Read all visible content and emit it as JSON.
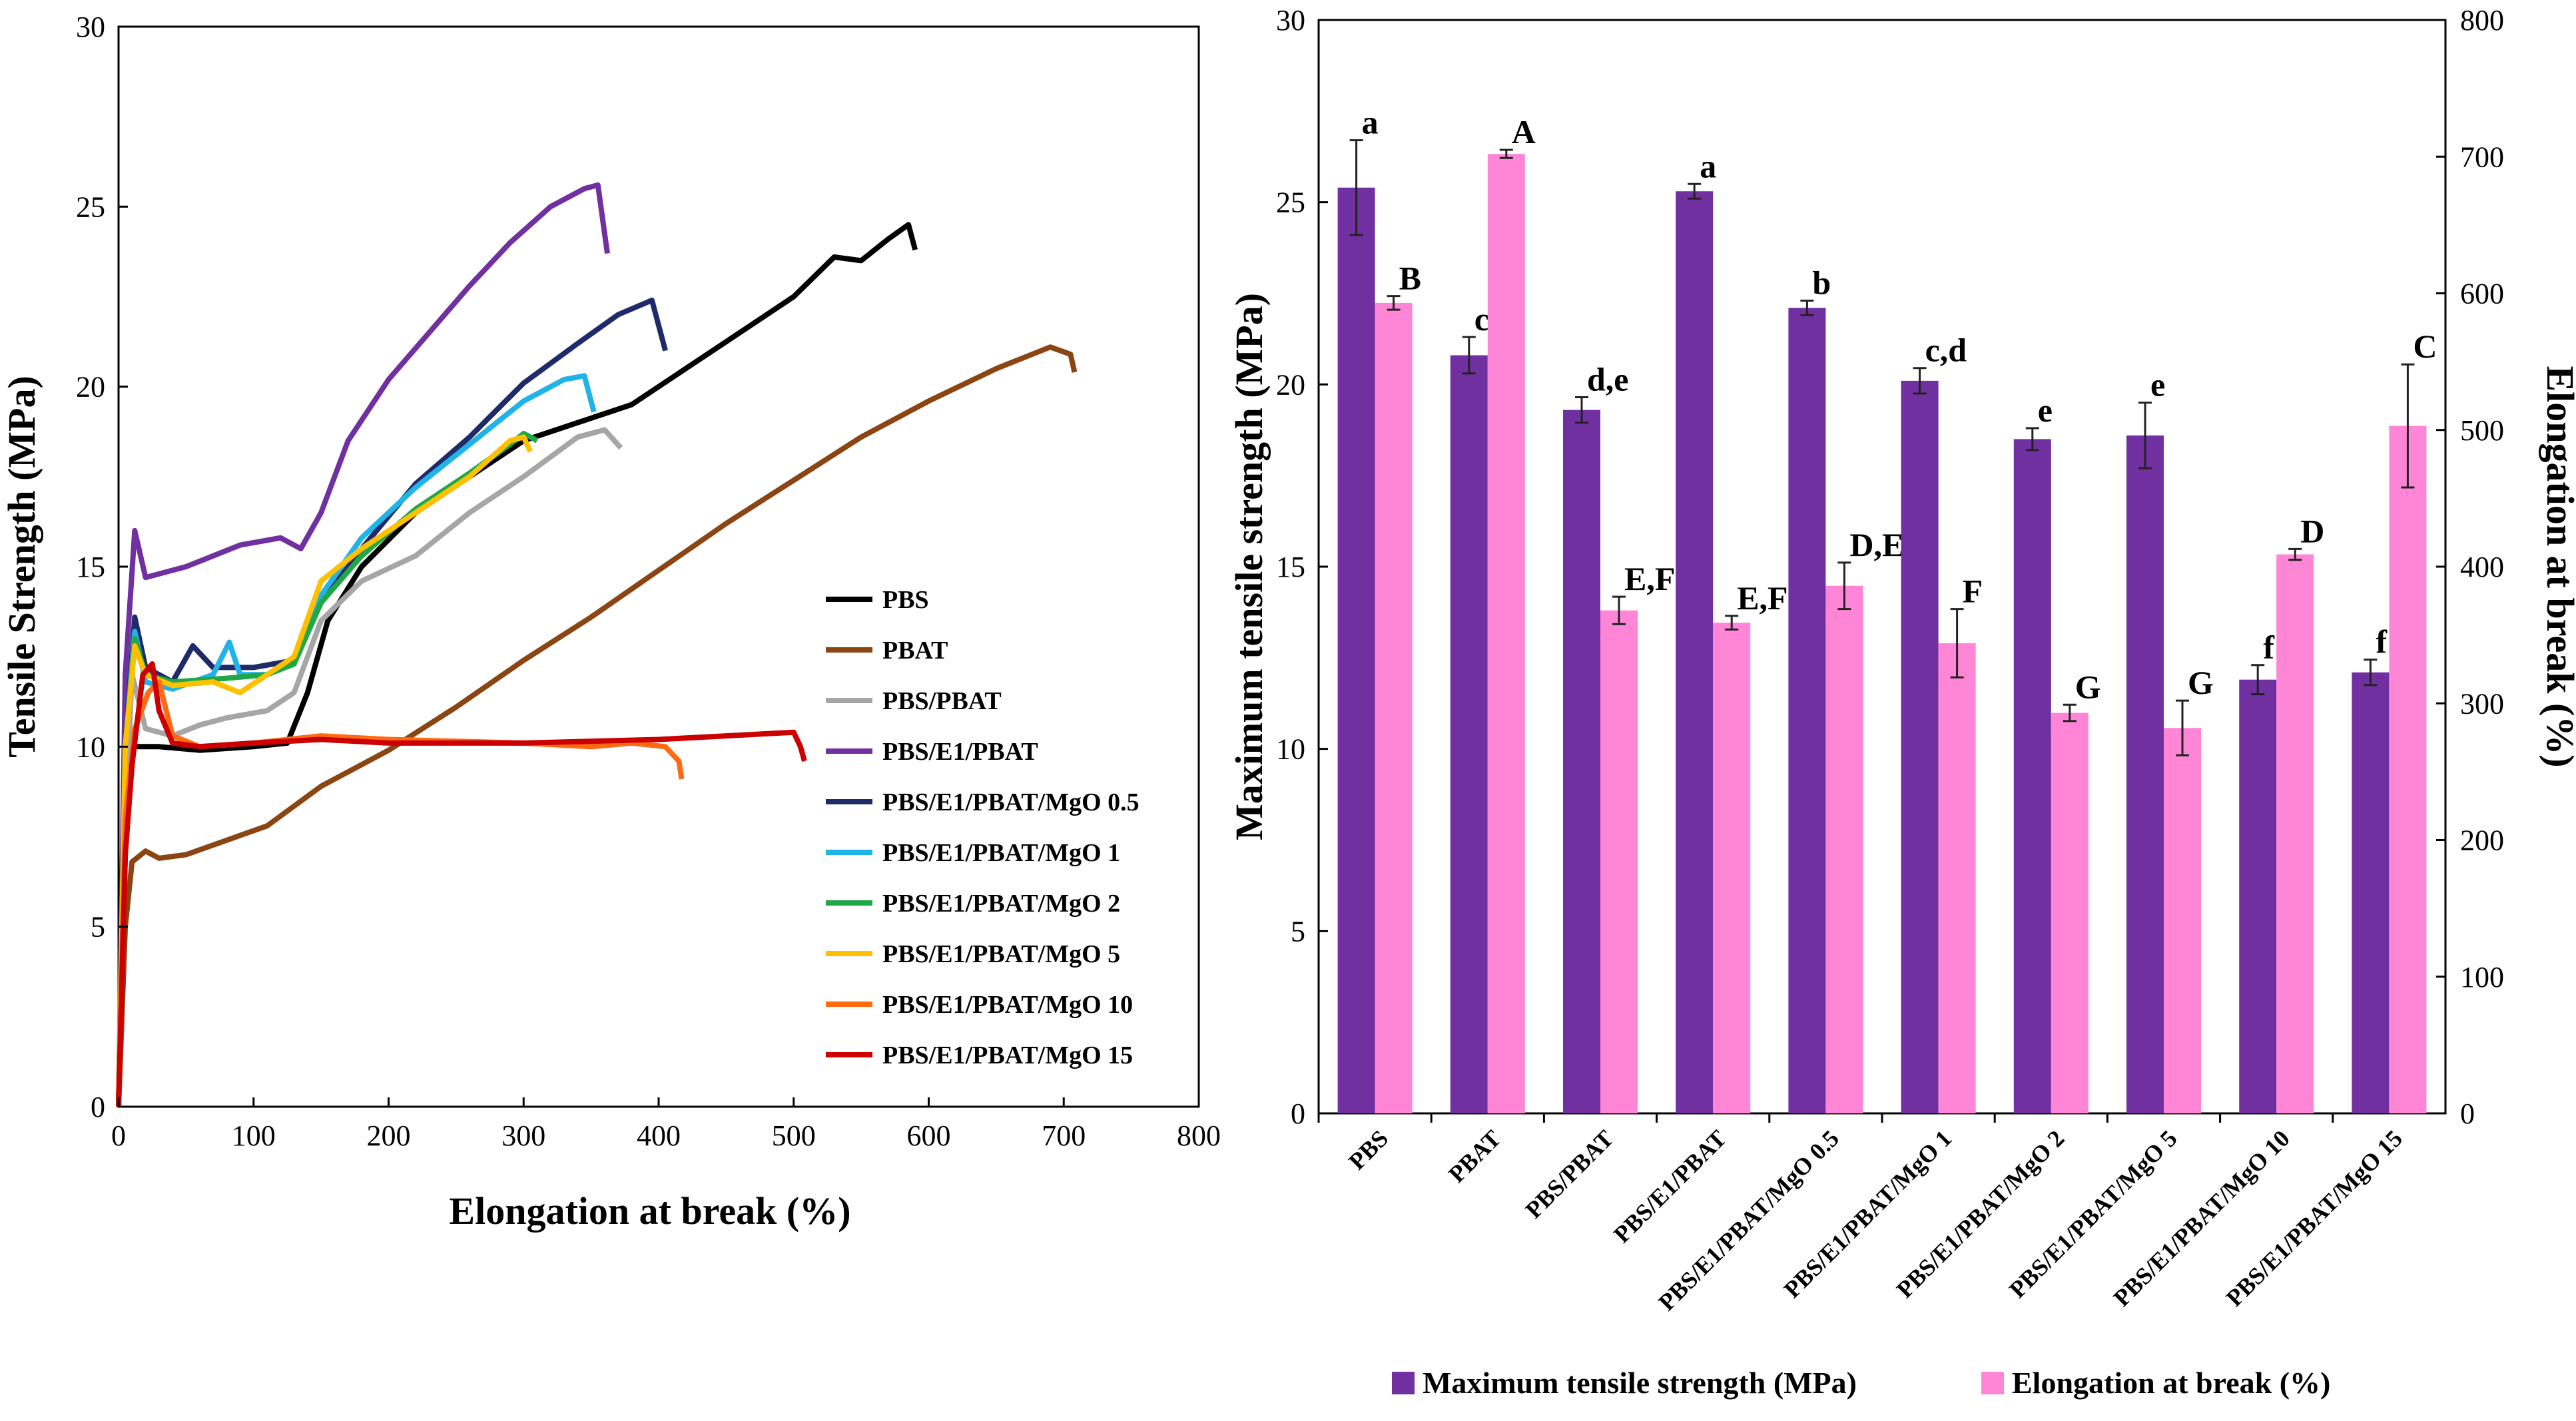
{
  "chart_data": [
    {
      "type": "line",
      "title": "",
      "xlabel": "Elongation at break (%)",
      "ylabel": "Tensile Strength (MPa)",
      "xlim": [
        0,
        800
      ],
      "ylim": [
        0,
        30
      ],
      "x_ticks": [
        "0",
        "100",
        "200",
        "300",
        "400",
        "500",
        "600",
        "700",
        "800"
      ],
      "y_ticks": [
        "0",
        "5",
        "10",
        "15",
        "20",
        "25",
        "30"
      ],
      "legend_position": "right",
      "series": [
        {
          "name": "PBS",
          "color": "#000000",
          "points": [
            [
              0,
              0
            ],
            [
              5,
              7
            ],
            [
              10,
              10
            ],
            [
              30,
              10
            ],
            [
              60,
              9.9
            ],
            [
              100,
              10
            ],
            [
              125,
              10.1
            ],
            [
              140,
              11.5
            ],
            [
              155,
              13.5
            ],
            [
              180,
              15
            ],
            [
              220,
              16.5
            ],
            [
              260,
              17.5
            ],
            [
              300,
              18.5
            ],
            [
              340,
              19
            ],
            [
              380,
              19.5
            ],
            [
              420,
              20.5
            ],
            [
              460,
              21.5
            ],
            [
              500,
              22.5
            ],
            [
              530,
              23.6
            ],
            [
              550,
              23.5
            ],
            [
              570,
              24.1
            ],
            [
              585,
              24.5
            ],
            [
              590,
              23.8
            ]
          ]
        },
        {
          "name": "PBAT",
          "color": "#8B4513",
          "points": [
            [
              0,
              0
            ],
            [
              5,
              5
            ],
            [
              10,
              6.8
            ],
            [
              20,
              7.1
            ],
            [
              30,
              6.9
            ],
            [
              50,
              7
            ],
            [
              80,
              7.4
            ],
            [
              110,
              7.8
            ],
            [
              150,
              8.9
            ],
            [
              200,
              9.9
            ],
            [
              250,
              11.1
            ],
            [
              300,
              12.4
            ],
            [
              350,
              13.6
            ],
            [
              400,
              14.9
            ],
            [
              450,
              16.2
            ],
            [
              500,
              17.4
            ],
            [
              550,
              18.6
            ],
            [
              600,
              19.6
            ],
            [
              650,
              20.5
            ],
            [
              690,
              21.1
            ],
            [
              705,
              20.9
            ],
            [
              708,
              20.4
            ]
          ]
        },
        {
          "name": "PBS/PBAT",
          "color": "#A6A6A6",
          "points": [
            [
              0,
              0
            ],
            [
              5,
              8
            ],
            [
              10,
              12
            ],
            [
              20,
              10.5
            ],
            [
              40,
              10.3
            ],
            [
              60,
              10.6
            ],
            [
              80,
              10.8
            ],
            [
              110,
              11
            ],
            [
              130,
              11.5
            ],
            [
              150,
              13.5
            ],
            [
              180,
              14.6
            ],
            [
              220,
              15.3
            ],
            [
              260,
              16.5
            ],
            [
              300,
              17.5
            ],
            [
              340,
              18.6
            ],
            [
              360,
              18.8
            ],
            [
              372,
              18.3
            ]
          ]
        },
        {
          "name": "PBS/E1/PBAT",
          "color": "#7030A0",
          "points": [
            [
              0,
              0
            ],
            [
              5,
              12
            ],
            [
              12,
              16
            ],
            [
              20,
              14.7
            ],
            [
              50,
              15
            ],
            [
              90,
              15.6
            ],
            [
              120,
              15.8
            ],
            [
              135,
              15.5
            ],
            [
              150,
              16.5
            ],
            [
              170,
              18.5
            ],
            [
              200,
              20.2
            ],
            [
              230,
              21.5
            ],
            [
              260,
              22.8
            ],
            [
              290,
              24
            ],
            [
              320,
              25
            ],
            [
              345,
              25.5
            ],
            [
              355,
              25.6
            ],
            [
              362,
              23.7
            ]
          ]
        },
        {
          "name": "PBS/E1/PBAT/MgO 0.5",
          "color": "#1F2A6B",
          "points": [
            [
              0,
              0
            ],
            [
              5,
              10
            ],
            [
              12,
              13.6
            ],
            [
              20,
              12.2
            ],
            [
              40,
              11.8
            ],
            [
              55,
              12.8
            ],
            [
              70,
              12.2
            ],
            [
              100,
              12.2
            ],
            [
              130,
              12.4
            ],
            [
              150,
              14
            ],
            [
              180,
              15.5
            ],
            [
              220,
              17.3
            ],
            [
              260,
              18.6
            ],
            [
              300,
              20.1
            ],
            [
              340,
              21.2
            ],
            [
              370,
              22
            ],
            [
              395,
              22.4
            ],
            [
              405,
              21
            ]
          ]
        },
        {
          "name": "PBS/E1/PBAT/MgO 1",
          "color": "#1FB3E8",
          "points": [
            [
              0,
              0
            ],
            [
              5,
              10
            ],
            [
              12,
              13.2
            ],
            [
              20,
              11.8
            ],
            [
              40,
              11.6
            ],
            [
              70,
              12
            ],
            [
              82,
              12.9
            ],
            [
              90,
              12
            ],
            [
              110,
              12
            ],
            [
              130,
              12.3
            ],
            [
              150,
              14.2
            ],
            [
              180,
              15.8
            ],
            [
              220,
              17.2
            ],
            [
              260,
              18.4
            ],
            [
              300,
              19.6
            ],
            [
              330,
              20.2
            ],
            [
              345,
              20.3
            ],
            [
              352,
              19.3
            ]
          ]
        },
        {
          "name": "PBS/E1/PBAT/MgO 2",
          "color": "#1FA845",
          "points": [
            [
              0,
              0
            ],
            [
              5,
              10
            ],
            [
              12,
              13
            ],
            [
              20,
              12
            ],
            [
              40,
              11.8
            ],
            [
              80,
              11.9
            ],
            [
              110,
              12
            ],
            [
              130,
              12.3
            ],
            [
              150,
              14
            ],
            [
              180,
              15.3
            ],
            [
              220,
              16.6
            ],
            [
              260,
              17.6
            ],
            [
              290,
              18.4
            ],
            [
              300,
              18.7
            ],
            [
              310,
              18.5
            ]
          ]
        },
        {
          "name": "PBS/E1/PBAT/MgO 5",
          "color": "#FFC000",
          "points": [
            [
              0,
              0
            ],
            [
              5,
              10
            ],
            [
              12,
              12.8
            ],
            [
              20,
              12
            ],
            [
              40,
              11.7
            ],
            [
              70,
              11.8
            ],
            [
              90,
              11.5
            ],
            [
              110,
              12
            ],
            [
              130,
              12.5
            ],
            [
              150,
              14.6
            ],
            [
              180,
              15.5
            ],
            [
              220,
              16.5
            ],
            [
              260,
              17.5
            ],
            [
              290,
              18.5
            ],
            [
              300,
              18.6
            ],
            [
              305,
              18.2
            ]
          ]
        },
        {
          "name": "PBS/E1/PBAT/MgO 10",
          "color": "#FF6A13",
          "points": [
            [
              0,
              0
            ],
            [
              5,
              8
            ],
            [
              12,
              10.5
            ],
            [
              22,
              11.5
            ],
            [
              30,
              11.8
            ],
            [
              40,
              10.3
            ],
            [
              60,
              10
            ],
            [
              100,
              10.1
            ],
            [
              150,
              10.3
            ],
            [
              200,
              10.2
            ],
            [
              300,
              10.1
            ],
            [
              350,
              10
            ],
            [
              380,
              10.1
            ],
            [
              405,
              10
            ],
            [
              415,
              9.6
            ],
            [
              417,
              9.1
            ]
          ]
        },
        {
          "name": "PBS/E1/PBAT/MgO 15",
          "color": "#CC0000",
          "points": [
            [
              0,
              0
            ],
            [
              5,
              7
            ],
            [
              10,
              9.5
            ],
            [
              18,
              12
            ],
            [
              25,
              12.3
            ],
            [
              30,
              11
            ],
            [
              40,
              10.1
            ],
            [
              60,
              10
            ],
            [
              100,
              10.1
            ],
            [
              150,
              10.2
            ],
            [
              200,
              10.1
            ],
            [
              300,
              10.1
            ],
            [
              400,
              10.2
            ],
            [
              450,
              10.3
            ],
            [
              500,
              10.4
            ],
            [
              505,
              10
            ],
            [
              508,
              9.6
            ]
          ]
        }
      ]
    },
    {
      "type": "bar",
      "title": "",
      "xlabel": "",
      "ylabel": "Maximum tensile strength (MPa)",
      "y2label": "Elongation at break (%)",
      "ylim": [
        0,
        30
      ],
      "y2lim": [
        0,
        800
      ],
      "y_ticks": [
        "0",
        "5",
        "10",
        "15",
        "20",
        "25",
        "30"
      ],
      "y2_ticks": [
        "0",
        "100",
        "200",
        "300",
        "400",
        "500",
        "600",
        "700",
        "800"
      ],
      "legend_position": "bottom",
      "categories": [
        "PBS",
        "PBAT",
        "PBS/PBAT",
        "PBS/E1/PBAT",
        "PBS/E1/PBAT/MgO 0.5",
        "PBS/E1/PBAT/MgO 1",
        "PBS/E1/PBAT/MgO 2",
        "PBS/E1/PBAT/MgO 5",
        "PBS/E1/PBAT/MgO 10",
        "PBS/E1/PBAT/MgO 15"
      ],
      "series": [
        {
          "name": "Maximum tensile strength (MPa)",
          "axis": "left",
          "color": "#7030A0",
          "values": [
            25.4,
            20.8,
            19.3,
            25.3,
            22.1,
            20.1,
            18.5,
            18.6,
            11.9,
            12.1
          ],
          "errors": [
            1.3,
            0.5,
            0.35,
            0.2,
            0.2,
            0.35,
            0.3,
            0.9,
            0.4,
            0.35
          ],
          "labels": [
            "a",
            "c",
            "d,e",
            "a",
            "b",
            "c,d",
            "e",
            "e",
            "f",
            "f"
          ]
        },
        {
          "name": "Elongation at break (%)",
          "axis": "right",
          "color": "#FF85D6",
          "values": [
            593,
            702,
            368,
            359,
            386,
            344,
            293,
            282,
            409,
            503
          ],
          "errors": [
            5,
            3,
            10,
            5,
            17,
            25,
            6,
            20,
            4,
            45
          ],
          "labels": [
            "B",
            "A",
            "E,F",
            "E,F",
            "D,E",
            "F",
            "G",
            "G",
            "D",
            "C"
          ]
        }
      ]
    }
  ]
}
